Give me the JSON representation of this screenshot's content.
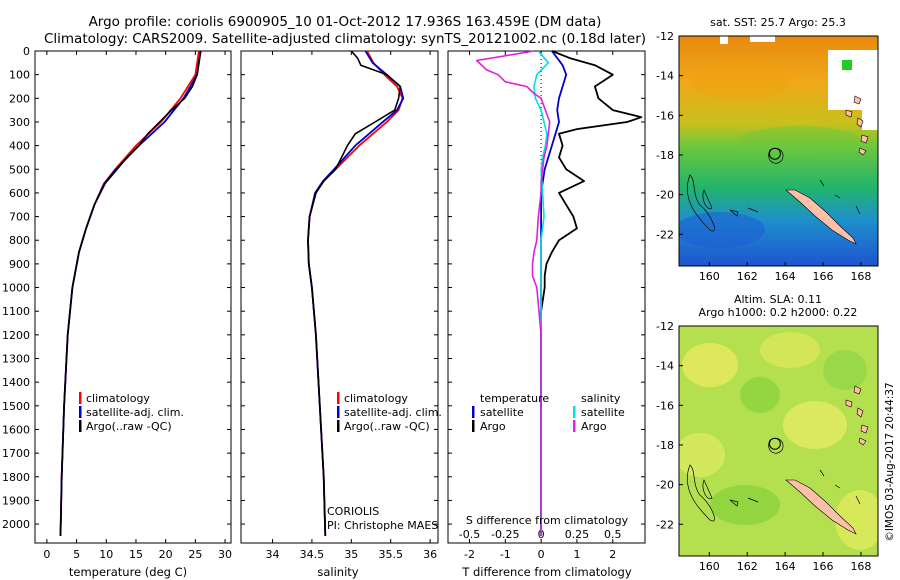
{
  "header": {
    "title_line1": "Argo profile: coriolis 6900905_10 01-Oct-2012 17.936S 163.459E (DM data)",
    "title_line2": "Climatology: CARS2009. Satellite-adjusted climatology: synTS_20121002.nc (0.18d later)"
  },
  "colors": {
    "climatology": "#ff0000",
    "satellite": "#0000cc",
    "argo": "#000000",
    "sat_salinity": "#00e0e0",
    "argo_salinity": "#e020e0"
  },
  "depth_ticks": [
    "0",
    "100",
    "200",
    "300",
    "400",
    "500",
    "600",
    "700",
    "800",
    "900",
    "1000",
    "1100",
    "1200",
    "1300",
    "1400",
    "1500",
    "1600",
    "1700",
    "1800",
    "1900",
    "2000"
  ],
  "chart_data": [
    {
      "type": "line",
      "name": "temperature-profile",
      "xlabel": "temperature (deg C)",
      "xlim": [
        -2,
        31
      ],
      "ylim": [
        2080,
        0
      ],
      "xticks": [
        "0",
        "5",
        "10",
        "15",
        "20",
        "25",
        "30"
      ],
      "legend": [
        "climatology",
        "satellite-adj. clim.",
        "Argo(..raw -QC)"
      ],
      "series": [
        {
          "key": "climatology",
          "depth": [
            0,
            100,
            200,
            300,
            400,
            500,
            560,
            650,
            750,
            850,
            1000,
            1200,
            1500,
            1800,
            2050
          ],
          "values": [
            25.6,
            25.0,
            22.5,
            19.2,
            15.0,
            11.5,
            9.6,
            8.0,
            6.6,
            5.4,
            4.3,
            3.5,
            2.9,
            2.5,
            2.3
          ]
        },
        {
          "key": "satellite",
          "depth": [
            0,
            100,
            200,
            300,
            400,
            500,
            560,
            650,
            750,
            850,
            1000,
            1200,
            1500,
            1800,
            2050
          ],
          "values": [
            25.9,
            25.3,
            23.0,
            19.8,
            15.5,
            11.6,
            9.7,
            8.0,
            6.6,
            5.4,
            4.3,
            3.5,
            2.9,
            2.5,
            2.3
          ]
        },
        {
          "key": "argo",
          "depth": [
            0,
            50,
            100,
            150,
            200,
            250,
            300,
            350,
            400,
            450,
            500,
            560,
            650,
            750,
            850,
            1000,
            1200,
            1500,
            1800,
            2050
          ],
          "values": [
            25.9,
            25.6,
            25.3,
            24.5,
            23.2,
            21.0,
            19.0,
            17.0,
            15.5,
            13.5,
            11.8,
            9.8,
            8.0,
            6.6,
            5.4,
            4.3,
            3.5,
            2.9,
            2.5,
            2.3
          ]
        }
      ]
    },
    {
      "type": "line",
      "name": "salinity-profile",
      "xlabel": "salinity",
      "xlim": [
        33.6,
        36.1
      ],
      "ylim": [
        2080,
        0
      ],
      "xticks": [
        "34",
        "34.5",
        "35",
        "35.5",
        "36"
      ],
      "legend": [
        "climatology",
        "satellite-adj. clim.",
        "Argo(..raw -QC)"
      ],
      "note_line1": "CORIOLIS",
      "note_line2": "PI: Christophe MAES",
      "series": [
        {
          "key": "climatology",
          "depth": [
            0,
            50,
            100,
            150,
            200,
            250,
            300,
            400,
            500,
            550,
            600,
            700,
            800,
            900,
            1000,
            1200,
            1500,
            1800,
            2050
          ],
          "values": [
            35.2,
            35.28,
            35.42,
            35.58,
            35.65,
            35.6,
            35.45,
            35.1,
            34.8,
            34.65,
            34.55,
            34.47,
            34.45,
            34.46,
            34.5,
            34.55,
            34.6,
            34.65,
            34.67
          ]
        },
        {
          "key": "satellite",
          "depth": [
            0,
            50,
            100,
            150,
            200,
            250,
            300,
            400,
            500,
            550,
            600,
            700,
            800,
            900,
            1000,
            1200,
            1500,
            1800,
            2050
          ],
          "values": [
            35.18,
            35.27,
            35.45,
            35.62,
            35.66,
            35.58,
            35.4,
            35.05,
            34.78,
            34.64,
            34.54,
            34.47,
            34.45,
            34.46,
            34.5,
            34.55,
            34.6,
            34.65,
            34.67
          ]
        },
        {
          "key": "argo",
          "depth": [
            0,
            30,
            60,
            100,
            150,
            200,
            250,
            300,
            350,
            400,
            500,
            550,
            600,
            700,
            800,
            900,
            1000,
            1200,
            1500,
            1800,
            2050
          ],
          "values": [
            35.0,
            35.08,
            35.12,
            35.45,
            35.62,
            35.6,
            35.55,
            35.3,
            35.05,
            34.95,
            34.8,
            34.65,
            34.55,
            34.47,
            34.45,
            34.46,
            34.5,
            34.55,
            34.6,
            34.65,
            34.67
          ]
        }
      ]
    },
    {
      "type": "line",
      "name": "difference-from-climatology",
      "xlabel": "T difference from climatology",
      "xlabel_top": "S difference from climatology",
      "xlim": [
        -2.6,
        2.9
      ],
      "ylim": [
        2080,
        0
      ],
      "xticks": [
        "-2",
        "-1",
        "0",
        "1",
        "2"
      ],
      "sticks": [
        "-0.5",
        "-0.25",
        "0",
        "0.25",
        "0.5"
      ],
      "legend_temperature_title": "temperature",
      "legend_salinity_title": "salinity",
      "legend_satellite": "satellite",
      "legend_argo": "Argo",
      "series": [
        {
          "key": "t_satellite",
          "depth": [
            0,
            60,
            100,
            150,
            200,
            250,
            300,
            400,
            500,
            600,
            800,
            1000,
            1200,
            1500,
            1800,
            2050
          ],
          "values": [
            0.3,
            0.6,
            0.7,
            0.6,
            0.5,
            0.45,
            0.5,
            0.3,
            0.1,
            0.0,
            0.0,
            0.0,
            0.0,
            0.0,
            0.0,
            0.0
          ]
        },
        {
          "key": "t_argo",
          "depth": [
            0,
            30,
            60,
            100,
            150,
            200,
            250,
            280,
            300,
            330,
            350,
            400,
            450,
            500,
            550,
            600,
            650,
            700,
            750,
            800,
            850,
            900,
            950,
            1000,
            1050,
            1100,
            1200,
            1500,
            1800,
            2050
          ],
          "values": [
            0.3,
            0.8,
            1.5,
            2.0,
            1.5,
            1.6,
            2.0,
            2.8,
            2.4,
            1.0,
            0.5,
            0.6,
            0.5,
            0.7,
            1.2,
            0.5,
            0.7,
            0.9,
            1.0,
            0.5,
            0.3,
            0.15,
            0.1,
            0.1,
            0.05,
            0.0,
            0.0,
            0.0,
            0.0,
            0.0
          ]
        },
        {
          "key": "s_satellite",
          "depth": [
            0,
            50,
            100,
            150,
            200,
            250,
            300,
            350,
            400,
            450,
            500,
            600,
            700,
            800,
            900,
            1000,
            1200,
            1500,
            1800,
            2050
          ],
          "values": [
            -0.02,
            0.05,
            -0.03,
            -0.05,
            -0.04,
            0.0,
            0.02,
            0.04,
            0.03,
            0.01,
            0.0,
            0.01,
            0.02,
            0.0,
            0.0,
            0.0,
            0.0,
            0.0,
            0.0,
            0.0
          ]
        },
        {
          "key": "s_argo",
          "depth": [
            0,
            40,
            80,
            100,
            130,
            150,
            180,
            200,
            250,
            300,
            350,
            400,
            450,
            500,
            550,
            600,
            700,
            800,
            850,
            900,
            950,
            1000,
            1200,
            1500,
            1800,
            2050
          ],
          "values": [
            -0.05,
            -0.45,
            -0.38,
            -0.3,
            -0.25,
            -0.1,
            -0.05,
            0.0,
            0.03,
            0.06,
            0.05,
            0.04,
            0.02,
            0.01,
            0.0,
            0.0,
            -0.02,
            -0.03,
            -0.05,
            -0.06,
            -0.06,
            -0.03,
            0.0,
            0.0,
            0.0,
            0.0
          ]
        }
      ]
    }
  ],
  "maps": {
    "top_title": "sat. SST: 25.7 Argo: 25.3",
    "bottom_title_line1": "Altim. SLA: 0.11",
    "bottom_title_line2": "Argo h1000: 0.2 h2000: 0.22",
    "lon_ticks": [
      "160",
      "162",
      "164",
      "166",
      "168"
    ],
    "lat_ticks": [
      "-12",
      "-14",
      "-16",
      "-18",
      "-20",
      "-22"
    ],
    "lon_range": [
      158.4,
      168.9
    ],
    "lat_range": [
      -23.6,
      -12
    ],
    "argo_lon": 163.459,
    "argo_lat": -17.936,
    "credit": "©IMOS 03-Aug-2017 20:44:37"
  }
}
